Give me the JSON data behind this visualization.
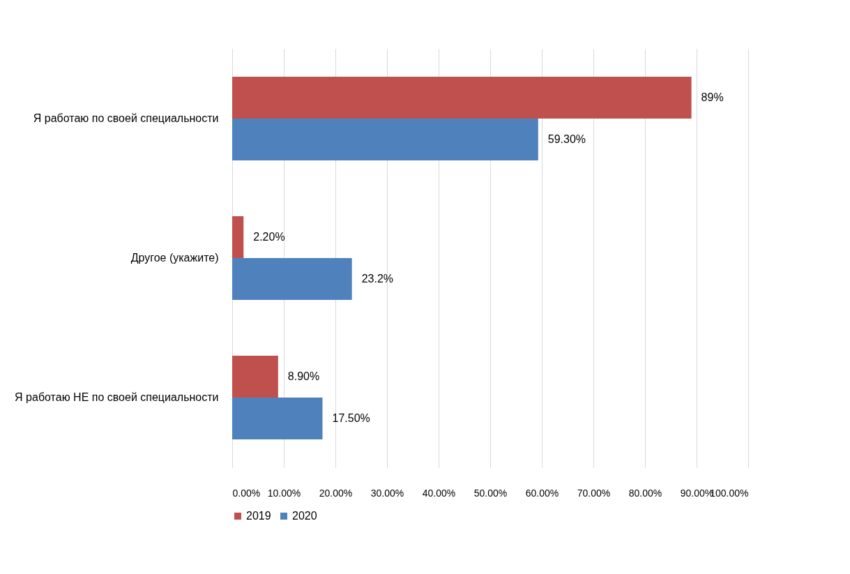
{
  "chart_data": {
    "type": "bar",
    "orientation": "horizontal",
    "categories": [
      "Я работаю по своей специальности",
      "Другое (укажите)",
      "Я работаю НЕ по своей специальности"
    ],
    "series": [
      {
        "name": "2019",
        "color": "#c0504d",
        "values": [
          89,
          2.2,
          8.9
        ],
        "value_labels": [
          "89%",
          "2.20%",
          "8.90%"
        ]
      },
      {
        "name": "2020",
        "color": "#4f81bd",
        "values": [
          59.3,
          23.2,
          17.5
        ],
        "value_labels": [
          "59.30%",
          "23.2%",
          "17.50%"
        ]
      }
    ],
    "xlim": [
      0,
      100
    ],
    "xticks": [
      {
        "value": 0,
        "label": "0.00%"
      },
      {
        "value": 10,
        "label": "10.00%"
      },
      {
        "value": 20,
        "label": "20.00%"
      },
      {
        "value": 30,
        "label": "30.00%"
      },
      {
        "value": 40,
        "label": "40.00%"
      },
      {
        "value": 50,
        "label": "50.00%"
      },
      {
        "value": 60,
        "label": "60.00%"
      },
      {
        "value": 70,
        "label": "70.00%"
      },
      {
        "value": 80,
        "label": "80.00%"
      },
      {
        "value": 90,
        "label": "90.00%"
      },
      {
        "value": 100,
        "label": "100.00%"
      }
    ],
    "grid": "x",
    "legend": "bottom"
  }
}
